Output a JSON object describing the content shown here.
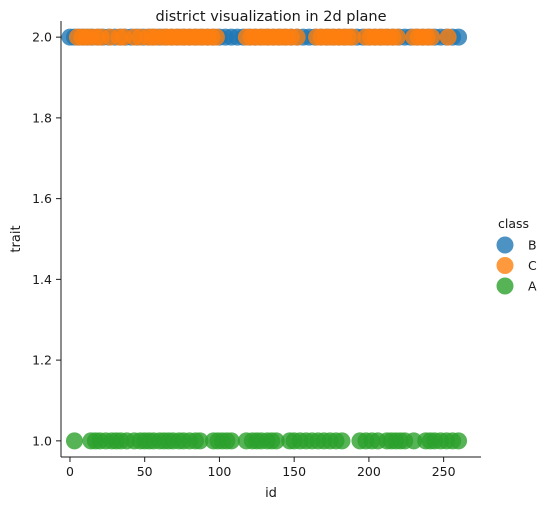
{
  "chart_data": {
    "type": "scatter",
    "title": "district visualization in 2d plane",
    "xlabel": "id",
    "ylabel": "trait",
    "xlim": [
      -6,
      275
    ],
    "ylim": [
      0.96,
      2.04
    ],
    "x_ticks": [
      0,
      50,
      100,
      150,
      200,
      250
    ],
    "y_ticks": [
      1.0,
      1.2,
      1.4,
      1.6,
      1.8,
      2.0
    ],
    "x_tick_labels": [
      "0",
      "50",
      "100",
      "150",
      "200",
      "250"
    ],
    "y_tick_labels": [
      "1.0",
      "1.2",
      "1.4",
      "1.6",
      "1.8",
      "2.0"
    ],
    "grid": false,
    "legend": {
      "title": "class",
      "placement": "right",
      "entries": [
        "B",
        "C",
        "A"
      ]
    },
    "colors": {
      "B": "#1f77b4",
      "C": "#ff7f0e",
      "A": "#2ca02c"
    },
    "series": [
      {
        "name": "B",
        "x": [
          0,
          3,
          6,
          9,
          12,
          15,
          19,
          22,
          26,
          30,
          34,
          37,
          41,
          45,
          49,
          53,
          56,
          60,
          64,
          68,
          72,
          76,
          80,
          84,
          88,
          92,
          96,
          100,
          104,
          108,
          112,
          116,
          120,
          124,
          128,
          132,
          136,
          140,
          144,
          148,
          152,
          156,
          160,
          164,
          168,
          172,
          176,
          180,
          184,
          188,
          192,
          196,
          200,
          204,
          208,
          212,
          216,
          220,
          224,
          228,
          232,
          236,
          240,
          244,
          248,
          252,
          256,
          260
        ],
        "y": [
          2,
          2,
          2,
          2,
          2,
          2,
          2,
          2,
          2,
          2,
          2,
          2,
          2,
          2,
          2,
          2,
          2,
          2,
          2,
          2,
          2,
          2,
          2,
          2,
          2,
          2,
          2,
          2,
          2,
          2,
          2,
          2,
          2,
          2,
          2,
          2,
          2,
          2,
          2,
          2,
          2,
          2,
          2,
          2,
          2,
          2,
          2,
          2,
          2,
          2,
          2,
          2,
          2,
          2,
          2,
          2,
          2,
          2,
          2,
          2,
          2,
          2,
          2,
          2,
          2,
          2,
          2,
          2
        ]
      },
      {
        "name": "C",
        "x": [
          5,
          8,
          11,
          14,
          18,
          21,
          27,
          33,
          36,
          43,
          47,
          52,
          55,
          58,
          62,
          65,
          68,
          71,
          74,
          77,
          80,
          83,
          86,
          89,
          92,
          95,
          98,
          118,
          121,
          124,
          127,
          130,
          133,
          136,
          139,
          142,
          145,
          148,
          152,
          165,
          168,
          171,
          174,
          177,
          180,
          183,
          186,
          189,
          198,
          201,
          204,
          207,
          210,
          213,
          216,
          219,
          230,
          233,
          236,
          239,
          242,
          253
        ],
        "y": [
          2,
          2,
          2,
          2,
          2,
          2,
          2,
          2,
          2,
          2,
          2,
          2,
          2,
          2,
          2,
          2,
          2,
          2,
          2,
          2,
          2,
          2,
          2,
          2,
          2,
          2,
          2,
          2,
          2,
          2,
          2,
          2,
          2,
          2,
          2,
          2,
          2,
          2,
          2,
          2,
          2,
          2,
          2,
          2,
          2,
          2,
          2,
          2,
          2,
          2,
          2,
          2,
          2,
          2,
          2,
          2,
          2,
          2,
          2,
          2,
          2,
          2
        ]
      },
      {
        "name": "A",
        "x": [
          3,
          14,
          17,
          20,
          24,
          28,
          31,
          34,
          38,
          43,
          47,
          50,
          53,
          56,
          60,
          63,
          66,
          69,
          73,
          76,
          80,
          84,
          87,
          96,
          99,
          102,
          105,
          108,
          118,
          122,
          125,
          128,
          132,
          135,
          138,
          147,
          150,
          154,
          158,
          162,
          166,
          170,
          174,
          178,
          182,
          194,
          198,
          202,
          206,
          212,
          215,
          218,
          221,
          224,
          230,
          238,
          241,
          244,
          248,
          252,
          256,
          260
        ],
        "y": [
          1,
          1,
          1,
          1,
          1,
          1,
          1,
          1,
          1,
          1,
          1,
          1,
          1,
          1,
          1,
          1,
          1,
          1,
          1,
          1,
          1,
          1,
          1,
          1,
          1,
          1,
          1,
          1,
          1,
          1,
          1,
          1,
          1,
          1,
          1,
          1,
          1,
          1,
          1,
          1,
          1,
          1,
          1,
          1,
          1,
          1,
          1,
          1,
          1,
          1,
          1,
          1,
          1,
          1,
          1,
          1,
          1,
          1,
          1,
          1,
          1,
          1
        ]
      }
    ]
  }
}
